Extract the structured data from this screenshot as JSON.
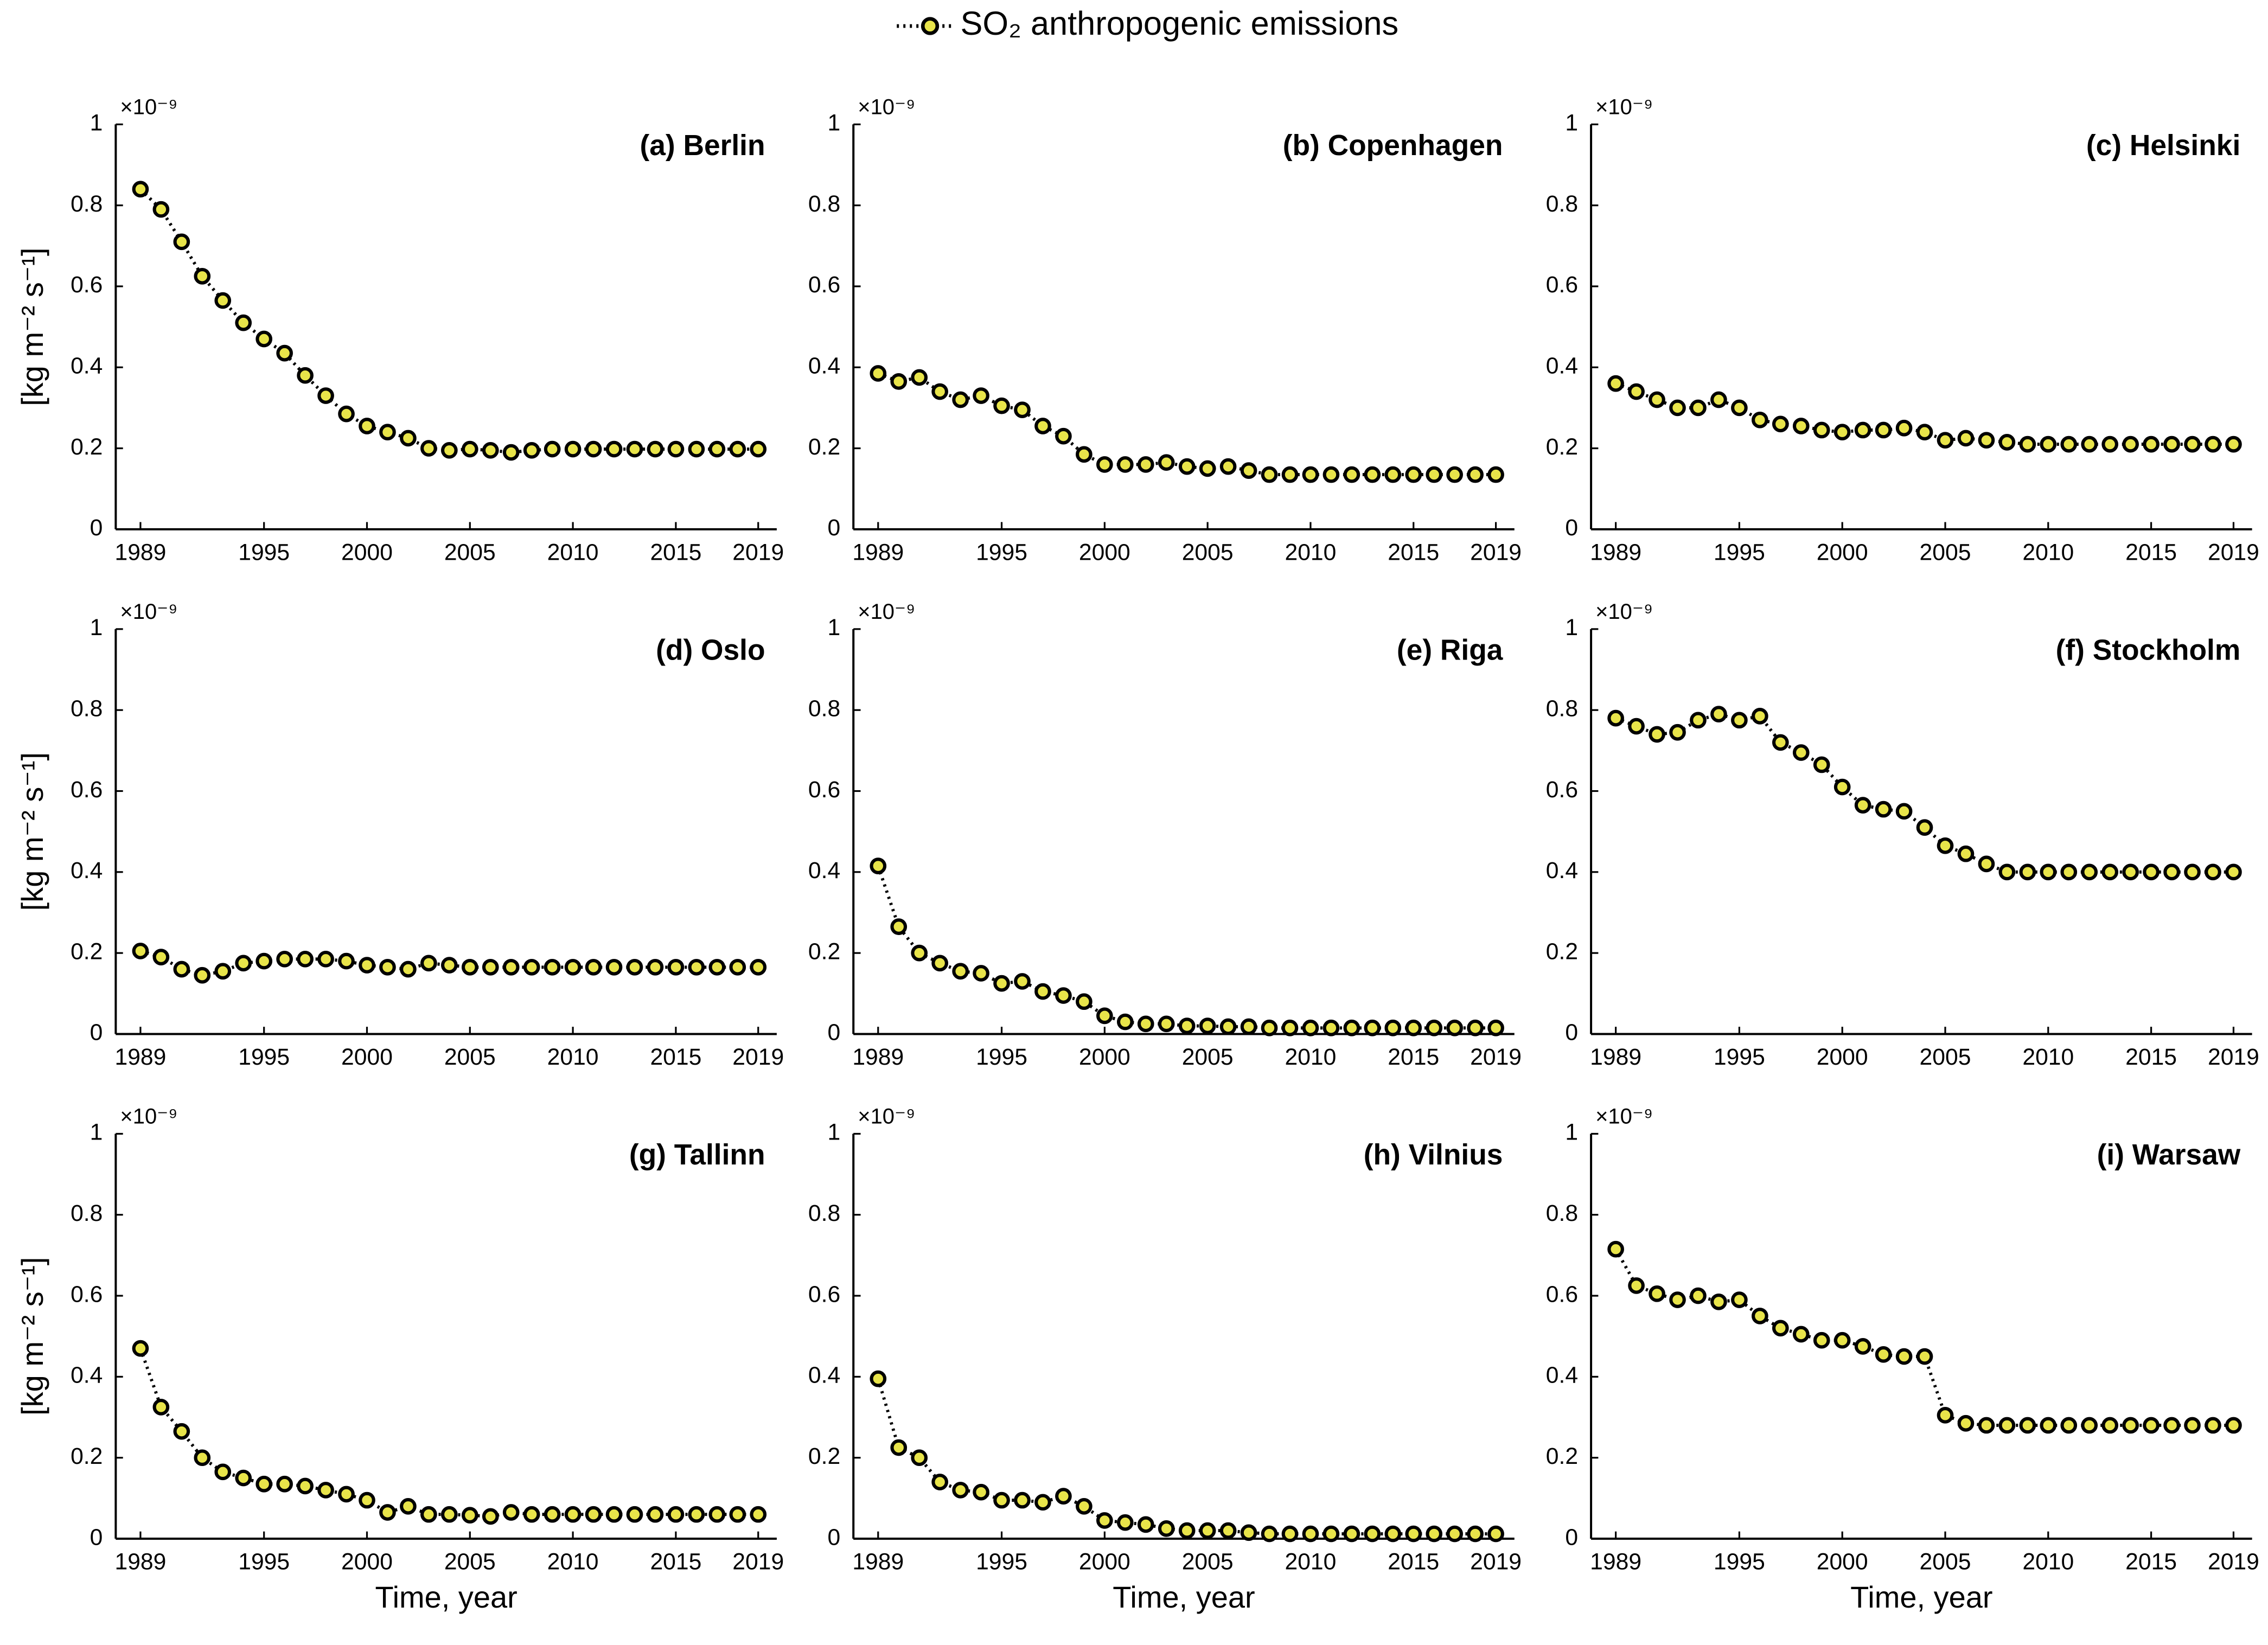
{
  "chart_data": [
    {
      "type": "line",
      "title": "(a) Berlin",
      "multiplier": "×10⁻⁹",
      "ylabel": "[kg m⁻² s⁻¹]",
      "x": [
        1989,
        1990,
        1991,
        1992,
        1993,
        1994,
        1995,
        1996,
        1997,
        1998,
        1999,
        2000,
        2001,
        2002,
        2003,
        2004,
        2005,
        2006,
        2007,
        2008,
        2009,
        2010,
        2011,
        2012,
        2013,
        2014,
        2015,
        2016,
        2017,
        2018,
        2019
      ],
      "series": [
        {
          "name": "SO₂ anthropogenic emissions",
          "color": "#e8e44a",
          "values": [
            0.84,
            0.79,
            0.71,
            0.625,
            0.565,
            0.51,
            0.47,
            0.435,
            0.38,
            0.33,
            0.285,
            0.255,
            0.24,
            0.225,
            0.2,
            0.195,
            0.198,
            0.195,
            0.19,
            0.195,
            0.198,
            0.198,
            0.198,
            0.198,
            0.198,
            0.198,
            0.198,
            0.198,
            0.198,
            0.198,
            0.198
          ]
        }
      ],
      "xlim": [
        1987.8,
        2019.9
      ],
      "xticks": [
        1989,
        1995,
        2000,
        2005,
        2010,
        2015,
        2019
      ],
      "ylim": [
        0,
        1
      ],
      "yticks": [
        0,
        0.2,
        0.4,
        0.6,
        0.8,
        1
      ]
    },
    {
      "type": "line",
      "title": "(b) Copenhagen",
      "multiplier": "×10⁻⁹",
      "x": [
        1989,
        1990,
        1991,
        1992,
        1993,
        1994,
        1995,
        1996,
        1997,
        1998,
        1999,
        2000,
        2001,
        2002,
        2003,
        2004,
        2005,
        2006,
        2007,
        2008,
        2009,
        2010,
        2011,
        2012,
        2013,
        2014,
        2015,
        2016,
        2017,
        2018,
        2019
      ],
      "series": [
        {
          "color": "#e8e44a",
          "values": [
            0.385,
            0.365,
            0.375,
            0.34,
            0.32,
            0.33,
            0.305,
            0.295,
            0.255,
            0.23,
            0.185,
            0.16,
            0.16,
            0.16,
            0.165,
            0.155,
            0.15,
            0.155,
            0.145,
            0.135,
            0.135,
            0.135,
            0.135,
            0.135,
            0.135,
            0.135,
            0.135,
            0.135,
            0.135,
            0.135,
            0.135
          ]
        }
      ],
      "xlim": [
        1987.8,
        2019.9
      ],
      "xticks": [
        1989,
        1995,
        2000,
        2005,
        2010,
        2015,
        2019
      ],
      "ylim": [
        0,
        1
      ],
      "yticks": [
        0,
        0.2,
        0.4,
        0.6,
        0.8,
        1
      ]
    },
    {
      "type": "line",
      "title": "(c) Helsinki",
      "multiplier": "×10⁻⁹",
      "x": [
        1989,
        1990,
        1991,
        1992,
        1993,
        1994,
        1995,
        1996,
        1997,
        1998,
        1999,
        2000,
        2001,
        2002,
        2003,
        2004,
        2005,
        2006,
        2007,
        2008,
        2009,
        2010,
        2011,
        2012,
        2013,
        2014,
        2015,
        2016,
        2017,
        2018,
        2019
      ],
      "series": [
        {
          "color": "#e8e44a",
          "values": [
            0.36,
            0.34,
            0.32,
            0.3,
            0.3,
            0.32,
            0.3,
            0.27,
            0.26,
            0.255,
            0.245,
            0.24,
            0.245,
            0.245,
            0.25,
            0.24,
            0.22,
            0.225,
            0.22,
            0.215,
            0.21,
            0.21,
            0.21,
            0.21,
            0.21,
            0.21,
            0.21,
            0.21,
            0.21,
            0.21,
            0.21
          ]
        }
      ],
      "xlim": [
        1987.8,
        2019.9
      ],
      "xticks": [
        1989,
        1995,
        2000,
        2005,
        2010,
        2015,
        2019
      ],
      "ylim": [
        0,
        1
      ],
      "yticks": [
        0,
        0.2,
        0.4,
        0.6,
        0.8,
        1
      ]
    },
    {
      "type": "line",
      "title": "(d) Oslo",
      "multiplier": "×10⁻⁹",
      "ylabel": "[kg m⁻² s⁻¹]",
      "x": [
        1989,
        1990,
        1991,
        1992,
        1993,
        1994,
        1995,
        1996,
        1997,
        1998,
        1999,
        2000,
        2001,
        2002,
        2003,
        2004,
        2005,
        2006,
        2007,
        2008,
        2009,
        2010,
        2011,
        2012,
        2013,
        2014,
        2015,
        2016,
        2017,
        2018,
        2019
      ],
      "series": [
        {
          "color": "#e8e44a",
          "values": [
            0.205,
            0.19,
            0.16,
            0.145,
            0.155,
            0.175,
            0.18,
            0.185,
            0.185,
            0.185,
            0.18,
            0.17,
            0.165,
            0.16,
            0.175,
            0.17,
            0.165,
            0.165,
            0.165,
            0.165,
            0.165,
            0.165,
            0.165,
            0.165,
            0.165,
            0.165,
            0.165,
            0.165,
            0.165,
            0.165,
            0.165
          ]
        }
      ],
      "xlim": [
        1987.8,
        2019.9
      ],
      "xticks": [
        1989,
        1995,
        2000,
        2005,
        2010,
        2015,
        2019
      ],
      "ylim": [
        0,
        1
      ],
      "yticks": [
        0,
        0.2,
        0.4,
        0.6,
        0.8,
        1
      ]
    },
    {
      "type": "line",
      "title": "(e) Riga",
      "multiplier": "×10⁻⁹",
      "x": [
        1989,
        1990,
        1991,
        1992,
        1993,
        1994,
        1995,
        1996,
        1997,
        1998,
        1999,
        2000,
        2001,
        2002,
        2003,
        2004,
        2005,
        2006,
        2007,
        2008,
        2009,
        2010,
        2011,
        2012,
        2013,
        2014,
        2015,
        2016,
        2017,
        2018,
        2019
      ],
      "series": [
        {
          "color": "#e8e44a",
          "values": [
            0.415,
            0.265,
            0.2,
            0.175,
            0.155,
            0.15,
            0.125,
            0.13,
            0.105,
            0.095,
            0.08,
            0.045,
            0.03,
            0.025,
            0.025,
            0.02,
            0.02,
            0.018,
            0.018,
            0.015,
            0.015,
            0.015,
            0.015,
            0.015,
            0.015,
            0.015,
            0.015,
            0.015,
            0.015,
            0.015,
            0.015
          ]
        }
      ],
      "xlim": [
        1987.8,
        2019.9
      ],
      "xticks": [
        1989,
        1995,
        2000,
        2005,
        2010,
        2015,
        2019
      ],
      "ylim": [
        0,
        1
      ],
      "yticks": [
        0,
        0.2,
        0.4,
        0.6,
        0.8,
        1
      ]
    },
    {
      "type": "line",
      "title": "(f) Stockholm",
      "multiplier": "×10⁻⁹",
      "x": [
        1989,
        1990,
        1991,
        1992,
        1993,
        1994,
        1995,
        1996,
        1997,
        1998,
        1999,
        2000,
        2001,
        2002,
        2003,
        2004,
        2005,
        2006,
        2007,
        2008,
        2009,
        2010,
        2011,
        2012,
        2013,
        2014,
        2015,
        2016,
        2017,
        2018,
        2019
      ],
      "series": [
        {
          "color": "#e8e44a",
          "values": [
            0.78,
            0.76,
            0.74,
            0.745,
            0.775,
            0.79,
            0.775,
            0.785,
            0.72,
            0.695,
            0.665,
            0.61,
            0.565,
            0.555,
            0.55,
            0.51,
            0.465,
            0.445,
            0.42,
            0.4,
            0.4,
            0.4,
            0.4,
            0.4,
            0.4,
            0.4,
            0.4,
            0.4,
            0.4,
            0.4,
            0.4
          ]
        }
      ],
      "xlim": [
        1987.8,
        2019.9
      ],
      "xticks": [
        1989,
        1995,
        2000,
        2005,
        2010,
        2015,
        2019
      ],
      "ylim": [
        0,
        1
      ],
      "yticks": [
        0,
        0.2,
        0.4,
        0.6,
        0.8,
        1
      ]
    },
    {
      "type": "line",
      "title": "(g) Tallinn",
      "multiplier": "×10⁻⁹",
      "ylabel": "[kg m⁻² s⁻¹]",
      "xlabel": "Time, year",
      "x": [
        1989,
        1990,
        1991,
        1992,
        1993,
        1994,
        1995,
        1996,
        1997,
        1998,
        1999,
        2000,
        2001,
        2002,
        2003,
        2004,
        2005,
        2006,
        2007,
        2008,
        2009,
        2010,
        2011,
        2012,
        2013,
        2014,
        2015,
        2016,
        2017,
        2018,
        2019
      ],
      "series": [
        {
          "color": "#e8e44a",
          "values": [
            0.47,
            0.325,
            0.265,
            0.2,
            0.165,
            0.15,
            0.135,
            0.135,
            0.13,
            0.12,
            0.11,
            0.095,
            0.065,
            0.08,
            0.06,
            0.06,
            0.058,
            0.055,
            0.065,
            0.06,
            0.06,
            0.06,
            0.06,
            0.06,
            0.06,
            0.06,
            0.06,
            0.06,
            0.06,
            0.06,
            0.06
          ]
        }
      ],
      "xlim": [
        1987.8,
        2019.9
      ],
      "xticks": [
        1989,
        1995,
        2000,
        2005,
        2010,
        2015,
        2019
      ],
      "ylim": [
        0,
        1
      ],
      "yticks": [
        0,
        0.2,
        0.4,
        0.6,
        0.8,
        1
      ]
    },
    {
      "type": "line",
      "title": "(h) Vilnius",
      "multiplier": "×10⁻⁹",
      "xlabel": "Time, year",
      "x": [
        1989,
        1990,
        1991,
        1992,
        1993,
        1994,
        1995,
        1996,
        1997,
        1998,
        1999,
        2000,
        2001,
        2002,
        2003,
        2004,
        2005,
        2006,
        2007,
        2008,
        2009,
        2010,
        2011,
        2012,
        2013,
        2014,
        2015,
        2016,
        2017,
        2018,
        2019
      ],
      "series": [
        {
          "color": "#e8e44a",
          "values": [
            0.395,
            0.225,
            0.2,
            0.14,
            0.12,
            0.115,
            0.095,
            0.095,
            0.09,
            0.105,
            0.08,
            0.045,
            0.04,
            0.035,
            0.025,
            0.02,
            0.02,
            0.02,
            0.015,
            0.012,
            0.012,
            0.012,
            0.012,
            0.012,
            0.012,
            0.012,
            0.012,
            0.012,
            0.012,
            0.012,
            0.012
          ]
        }
      ],
      "xlim": [
        1987.8,
        2019.9
      ],
      "xticks": [
        1989,
        1995,
        2000,
        2005,
        2010,
        2015,
        2019
      ],
      "ylim": [
        0,
        1
      ],
      "yticks": [
        0,
        0.2,
        0.4,
        0.6,
        0.8,
        1
      ]
    },
    {
      "type": "line",
      "title": "(i) Warsaw",
      "multiplier": "×10⁻⁹",
      "xlabel": "Time, year",
      "x": [
        1989,
        1990,
        1991,
        1992,
        1993,
        1994,
        1995,
        1996,
        1997,
        1998,
        1999,
        2000,
        2001,
        2002,
        2003,
        2004,
        2005,
        2006,
        2007,
        2008,
        2009,
        2010,
        2011,
        2012,
        2013,
        2014,
        2015,
        2016,
        2017,
        2018,
        2019
      ],
      "series": [
        {
          "color": "#e8e44a",
          "values": [
            0.715,
            0.625,
            0.605,
            0.59,
            0.6,
            0.585,
            0.59,
            0.55,
            0.52,
            0.505,
            0.49,
            0.49,
            0.475,
            0.455,
            0.45,
            0.45,
            0.305,
            0.285,
            0.28,
            0.28,
            0.28,
            0.28,
            0.28,
            0.28,
            0.28,
            0.28,
            0.28,
            0.28,
            0.28,
            0.28,
            0.28
          ]
        }
      ],
      "xlim": [
        1987.8,
        2019.9
      ],
      "xticks": [
        1989,
        1995,
        2000,
        2005,
        2010,
        2015,
        2019
      ],
      "ylim": [
        0,
        1
      ],
      "yticks": [
        0,
        0.2,
        0.4,
        0.6,
        0.8,
        1
      ]
    }
  ]
}
